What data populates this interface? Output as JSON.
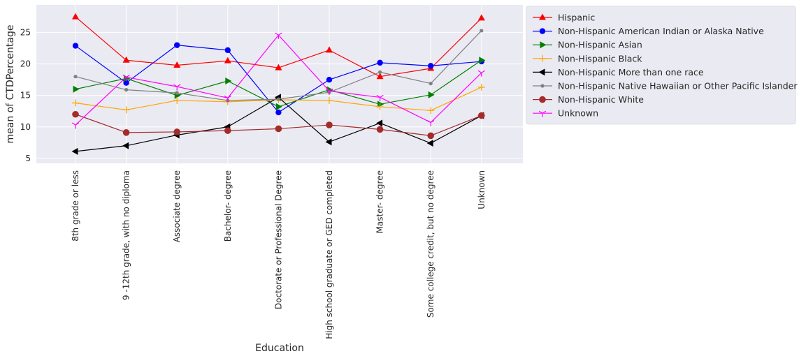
{
  "chart_data": {
    "type": "line",
    "title": "",
    "xlabel": "Education",
    "ylabel": "mean of CTDPercentage",
    "ylim": [
      4.2,
      29.4
    ],
    "yticks": [
      5,
      10,
      15,
      20,
      25
    ],
    "grid": true,
    "legend_position": "outside-right",
    "categories": [
      "8th grade or less",
      "9 -12th grade, with no diploma",
      "Associate degree",
      "Bachelor- degree",
      "Doctorate  or Professional Degree",
      "High school graduate or GED completed",
      "Master- degree",
      "Some college credit, but no degree",
      "Unknown"
    ],
    "series": [
      {
        "name": "Hispanic",
        "color": "#ff0000",
        "marker": "triangle-up",
        "values": [
          27.5,
          20.6,
          19.8,
          20.5,
          19.4,
          22.2,
          18.0,
          19.3,
          27.3
        ]
      },
      {
        "name": "Non-Hispanic American Indian or Alaska Native",
        "color": "#0000ff",
        "marker": "circle",
        "values": [
          22.9,
          17.0,
          23.0,
          22.2,
          12.3,
          17.5,
          20.2,
          19.7,
          20.4
        ]
      },
      {
        "name": "Non-Hispanic Asian",
        "color": "#008000",
        "marker": "triangle-right",
        "values": [
          16.0,
          17.7,
          15.0,
          17.3,
          13.2,
          15.9,
          13.6,
          15.1,
          20.6
        ]
      },
      {
        "name": "Non-Hispanic Black",
        "color": "#ffa500",
        "marker": "plus",
        "values": [
          13.8,
          12.7,
          14.2,
          14.0,
          14.3,
          14.2,
          13.2,
          12.6,
          16.3
        ]
      },
      {
        "name": "Non-Hispanic More than one race",
        "color": "#000000",
        "marker": "triangle-left",
        "values": [
          6.1,
          7.0,
          8.7,
          10.0,
          14.7,
          7.6,
          10.6,
          7.4,
          11.8
        ]
      },
      {
        "name": "Non-Hispanic Native Hawaiian or Other Pacific Islander",
        "color": "#808080",
        "marker": "small-circle",
        "values": [
          18.0,
          15.9,
          15.4,
          14.2,
          14.4,
          15.5,
          18.7,
          16.9,
          25.3
        ]
      },
      {
        "name": "Non-Hispanic White",
        "color": "#a52a2a",
        "marker": "big-circle",
        "values": [
          12.0,
          9.1,
          9.2,
          9.4,
          9.7,
          10.3,
          9.6,
          8.6,
          11.8
        ]
      },
      {
        "name": "Unknown",
        "color": "#ff00ff",
        "marker": "tri-down",
        "values": [
          10.3,
          17.9,
          16.4,
          14.6,
          24.6,
          15.7,
          14.7,
          10.7,
          18.6
        ]
      }
    ]
  }
}
